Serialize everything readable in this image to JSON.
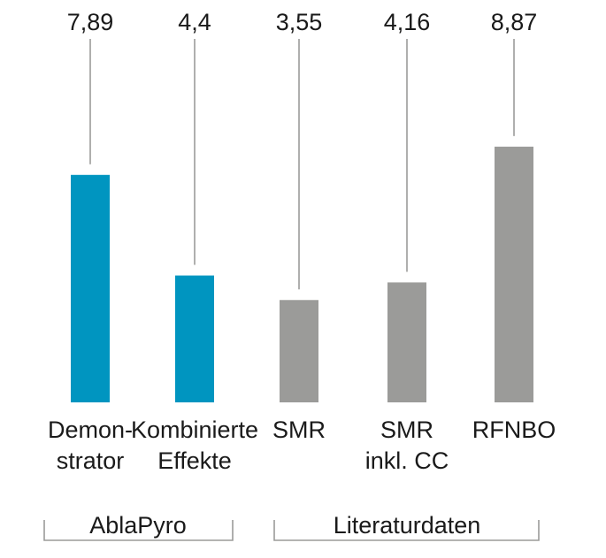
{
  "chart_data": {
    "type": "bar",
    "categories": [
      {
        "lines": [
          "Demon-",
          "strator"
        ],
        "group": "AblaPyro"
      },
      {
        "lines": [
          "Kombinierte",
          "Effekte"
        ],
        "group": "AblaPyro"
      },
      {
        "lines": [
          "SMR"
        ],
        "group": "Literaturdaten"
      },
      {
        "lines": [
          "SMR",
          "inkl. CC"
        ],
        "group": "Literaturdaten"
      },
      {
        "lines": [
          "RFNBO"
        ],
        "group": "Literaturdaten"
      }
    ],
    "values": [
      7.89,
      4.4,
      3.55,
      4.16,
      8.87
    ],
    "value_labels": [
      "7,89",
      "4,4",
      "3,55",
      "4,16",
      "8,87"
    ],
    "groups": [
      {
        "name": "AblaPyro",
        "color": "#0095c0",
        "members": [
          0,
          1
        ]
      },
      {
        "name": "Literaturdaten",
        "color": "#9b9b99",
        "members": [
          2,
          3,
          4
        ]
      }
    ],
    "ylim": [
      0,
      10
    ],
    "title": "",
    "xlabel": "",
    "ylabel": "",
    "grid": false,
    "colors": {
      "leader_line": "#9b9b99",
      "bracket": "#9b9b99",
      "text": "#1a1a1a"
    }
  }
}
